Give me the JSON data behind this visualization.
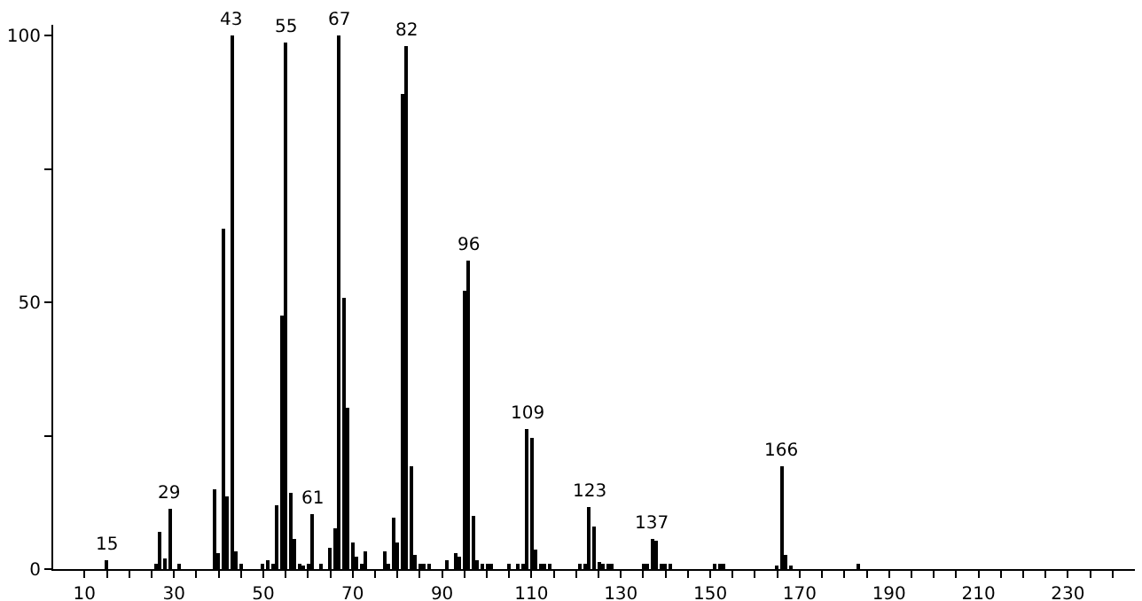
{
  "chart_data": {
    "type": "bar",
    "color": "#000000",
    "x": [
      15,
      26,
      27,
      28,
      29,
      31,
      39,
      40,
      41,
      42,
      43,
      44,
      45,
      50,
      51,
      52,
      53,
      54,
      55,
      56,
      57,
      58,
      59,
      60,
      61,
      63,
      65,
      66,
      67,
      68,
      69,
      70,
      71,
      72,
      73,
      77,
      78,
      79,
      80,
      81,
      82,
      83,
      84,
      85,
      86,
      87,
      91,
      93,
      94,
      95,
      96,
      97,
      98,
      99,
      100,
      101,
      105,
      107,
      108,
      109,
      110,
      111,
      112,
      113,
      114,
      121,
      122,
      123,
      124,
      125,
      126,
      127,
      128,
      135,
      136,
      137,
      138,
      139,
      140,
      141,
      151,
      152,
      153,
      165,
      166,
      167,
      168,
      183
    ],
    "values": [
      1.6,
      1,
      7.1,
      2,
      11.3,
      1,
      15,
      3,
      63.8,
      13.6,
      100,
      3.3,
      1,
      1,
      1.6,
      1,
      12,
      47.4,
      98.8,
      14.2,
      5.8,
      1,
      0.5,
      1,
      10.3,
      1,
      3.9,
      7.8,
      100,
      50.8,
      30.1,
      4.9,
      2.3,
      1,
      3.2,
      3.2,
      1,
      9.7,
      4.9,
      89,
      98,
      19.4,
      2.5,
      1,
      1,
      1,
      1.6,
      2.9,
      2.3,
      52.1,
      57.8,
      10,
      1.6,
      1,
      1,
      1,
      1,
      1,
      1,
      26.2,
      24.6,
      3.6,
      1,
      1,
      1,
      1,
      1,
      11.7,
      8.1,
      1.4,
      1,
      1,
      1,
      1,
      1,
      5.8,
      5.2,
      1,
      1,
      1,
      1,
      1,
      1,
      0.6,
      19.2,
      2.5,
      0.5,
      1
    ],
    "xlim": [
      3,
      245
    ],
    "ylim": [
      0,
      102
    ],
    "xticks": [
      10,
      {
        "value": 15,
        "label": null
      },
      {
        "value": 20,
        "label": null
      },
      {
        "value": 25,
        "label": null
      },
      30,
      {
        "value": 35,
        "label": null
      },
      {
        "value": 40,
        "label": null
      },
      {
        "value": 45,
        "label": null
      },
      50,
      {
        "value": 55,
        "label": null
      },
      {
        "value": 60,
        "label": null
      },
      {
        "value": 65,
        "label": null
      },
      70,
      {
        "value": 75,
        "label": null
      },
      {
        "value": 80,
        "label": null
      },
      {
        "value": 85,
        "label": null
      },
      90,
      {
        "value": 95,
        "label": null
      },
      {
        "value": 100,
        "label": null
      },
      {
        "value": 105,
        "label": null
      },
      110,
      {
        "value": 115,
        "label": null
      },
      {
        "value": 120,
        "label": null
      },
      {
        "value": 125,
        "label": null
      },
      130,
      {
        "value": 135,
        "label": null
      },
      {
        "value": 140,
        "label": null
      },
      {
        "value": 145,
        "label": null
      },
      150,
      {
        "value": 155,
        "label": null
      },
      {
        "value": 160,
        "label": null
      },
      {
        "value": 165,
        "label": null
      },
      170,
      {
        "value": 175,
        "label": null
      },
      {
        "value": 180,
        "label": null
      },
      {
        "value": 185,
        "label": null
      },
      190,
      {
        "value": 195,
        "label": null
      },
      {
        "value": 200,
        "label": null
      },
      {
        "value": 205,
        "label": null
      },
      210,
      {
        "value": 215,
        "label": null
      },
      {
        "value": 220,
        "label": null
      },
      {
        "value": 225,
        "label": null
      },
      230,
      {
        "value": 235,
        "label": null
      },
      {
        "value": 240,
        "label": null
      }
    ],
    "yticks": [
      0,
      {
        "value": 25,
        "label": null
      },
      50,
      {
        "value": 75,
        "label": null
      },
      100
    ],
    "annotations": [
      {
        "text": "15",
        "x": 15,
        "y": 1.6
      },
      {
        "text": "29",
        "x": 29,
        "y": 11.3
      },
      {
        "text": "43",
        "x": 43,
        "y": 100
      },
      {
        "text": "55",
        "x": 55,
        "y": 98.8
      },
      {
        "text": "61",
        "x": 61,
        "y": 10.3
      },
      {
        "text": "67",
        "x": 67,
        "y": 100
      },
      {
        "text": "82",
        "x": 82,
        "y": 98
      },
      {
        "text": "96",
        "x": 96,
        "y": 57.8
      },
      {
        "text": "109",
        "x": 109,
        "y": 26.2
      },
      {
        "text": "123",
        "x": 123,
        "y": 11.7
      },
      {
        "text": "137",
        "x": 137,
        "y": 5.8
      },
      {
        "text": "166",
        "x": 166,
        "y": 19.2
      }
    ]
  }
}
